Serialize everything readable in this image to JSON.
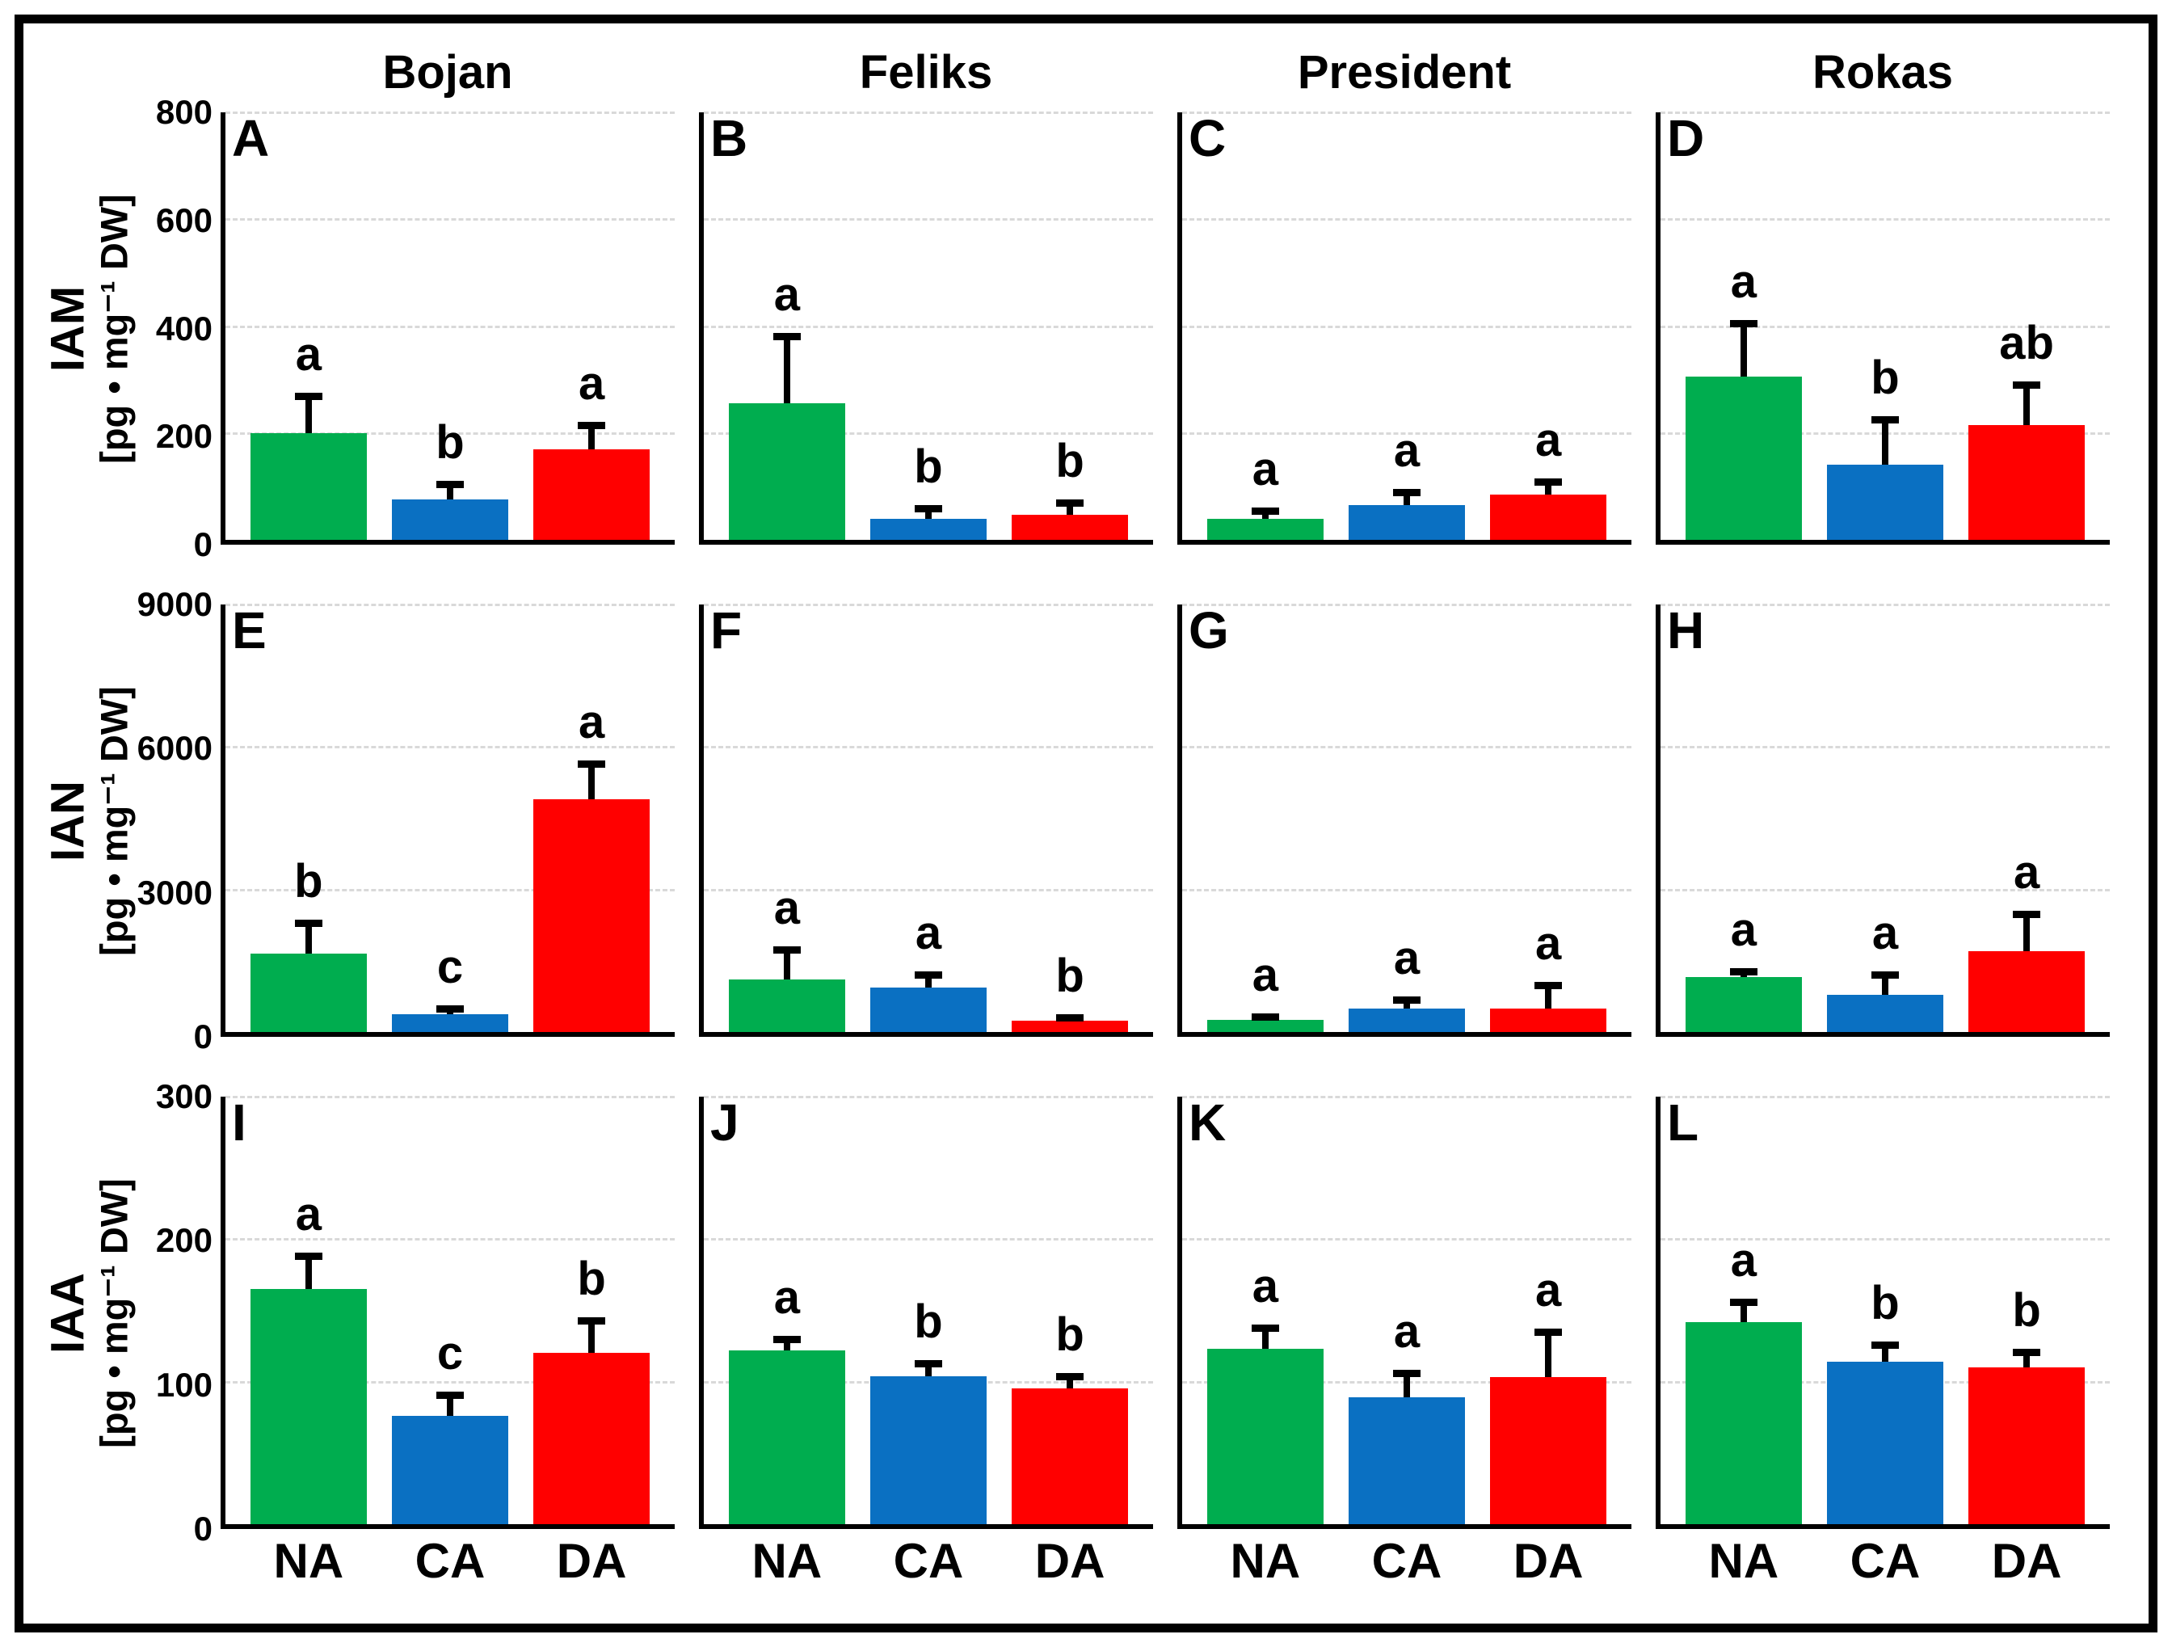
{
  "figure": {
    "columns": [
      "Bojan",
      "Feliks",
      "President",
      "Rokas"
    ],
    "treatments": [
      "NA",
      "CA",
      "DA"
    ],
    "series_colors": {
      "NA": "#00AD4F",
      "CA": "#0A70C2",
      "DA": "#FF0000"
    },
    "axis_color": "#000000",
    "gridline_color": "#d9d9d9",
    "rows": [
      {
        "label": "IAM",
        "unit": "[pg • mg⁻¹ DW]",
        "ymax": 800,
        "yticks": [
          0,
          200,
          400,
          600,
          800
        ]
      },
      {
        "label": "IAN",
        "unit": "[pg • mg⁻¹ DW]",
        "ymax": 9000,
        "yticks": [
          0,
          3000,
          6000,
          9000
        ]
      },
      {
        "label": "IAA",
        "unit": "[pg • mg⁻¹ DW]",
        "ymax": 300,
        "yticks": [
          0,
          100,
          200,
          300
        ]
      }
    ]
  },
  "chart_data": [
    {
      "panel": "A",
      "type": "bar",
      "hormone": "IAM",
      "cultivar": "Bojan",
      "ylim": [
        0,
        800
      ],
      "grid": "dashed-horizontal",
      "legend": "none",
      "categories": [
        "NA",
        "CA",
        "DA"
      ],
      "values": [
        200,
        75,
        170
      ],
      "error_top": [
        275,
        110,
        220
      ],
      "sig_letters": [
        "a",
        "b",
        "a"
      ]
    },
    {
      "panel": "B",
      "type": "bar",
      "hormone": "IAM",
      "cultivar": "Feliks",
      "ylim": [
        0,
        800
      ],
      "grid": "dashed-horizontal",
      "legend": "none",
      "categories": [
        "NA",
        "CA",
        "DA"
      ],
      "values": [
        255,
        40,
        47
      ],
      "error_top": [
        385,
        65,
        75
      ],
      "sig_letters": [
        "a",
        "b",
        "b"
      ]
    },
    {
      "panel": "C",
      "type": "bar",
      "hormone": "IAM",
      "cultivar": "President",
      "ylim": [
        0,
        800
      ],
      "grid": "dashed-horizontal",
      "legend": "none",
      "categories": [
        "NA",
        "CA",
        "DA"
      ],
      "values": [
        40,
        65,
        85
      ],
      "error_top": [
        60,
        95,
        115
      ],
      "sig_letters": [
        "a",
        "a",
        "a"
      ]
    },
    {
      "panel": "D",
      "type": "bar",
      "hormone": "IAM",
      "cultivar": "Rokas",
      "ylim": [
        0,
        800
      ],
      "grid": "dashed-horizontal",
      "legend": "none",
      "categories": [
        "NA",
        "CA",
        "DA"
      ],
      "values": [
        305,
        140,
        215
      ],
      "error_top": [
        410,
        230,
        295
      ],
      "sig_letters": [
        "a",
        "b",
        "ab"
      ]
    },
    {
      "panel": "E",
      "type": "bar",
      "hormone": "IAN",
      "cultivar": "Bojan",
      "ylim": [
        0,
        9000
      ],
      "grid": "dashed-horizontal",
      "legend": "none",
      "categories": [
        "NA",
        "CA",
        "DA"
      ],
      "values": [
        1650,
        380,
        4900
      ],
      "error_top": [
        2350,
        560,
        5700
      ],
      "sig_letters": [
        "b",
        "c",
        "a"
      ]
    },
    {
      "panel": "F",
      "type": "bar",
      "hormone": "IAN",
      "cultivar": "Feliks",
      "ylim": [
        0,
        9000
      ],
      "grid": "dashed-horizontal",
      "legend": "none",
      "categories": [
        "NA",
        "CA",
        "DA"
      ],
      "values": [
        1100,
        940,
        230
      ],
      "error_top": [
        1800,
        1280,
        370
      ],
      "sig_letters": [
        "a",
        "a",
        "b"
      ]
    },
    {
      "panel": "G",
      "type": "bar",
      "hormone": "IAN",
      "cultivar": "President",
      "ylim": [
        0,
        9000
      ],
      "grid": "dashed-horizontal",
      "legend": "none",
      "categories": [
        "NA",
        "CA",
        "DA"
      ],
      "values": [
        250,
        500,
        500
      ],
      "error_top": [
        350,
        750,
        1050
      ],
      "sig_letters": [
        "a",
        "a",
        "a"
      ]
    },
    {
      "panel": "H",
      "type": "bar",
      "hormone": "IAN",
      "cultivar": "Rokas",
      "ylim": [
        0,
        9000
      ],
      "grid": "dashed-horizontal",
      "legend": "none",
      "categories": [
        "NA",
        "CA",
        "DA"
      ],
      "values": [
        1150,
        780,
        1700
      ],
      "error_top": [
        1350,
        1270,
        2550
      ],
      "sig_letters": [
        "a",
        "a",
        "a"
      ]
    },
    {
      "panel": "I",
      "type": "bar",
      "hormone": "IAA",
      "cultivar": "Bojan",
      "ylim": [
        0,
        300
      ],
      "grid": "dashed-horizontal",
      "legend": "none",
      "categories": [
        "NA",
        "CA",
        "DA"
      ],
      "values": [
        165,
        76,
        120
      ],
      "error_top": [
        190,
        93,
        145
      ],
      "sig_letters": [
        "a",
        "c",
        "b"
      ]
    },
    {
      "panel": "J",
      "type": "bar",
      "hormone": "IAA",
      "cultivar": "Feliks",
      "ylim": [
        0,
        300
      ],
      "grid": "dashed-horizontal",
      "legend": "none",
      "categories": [
        "NA",
        "CA",
        "DA"
      ],
      "values": [
        122,
        104,
        95
      ],
      "error_top": [
        132,
        115,
        106
      ],
      "sig_letters": [
        "a",
        "b",
        "b"
      ]
    },
    {
      "panel": "K",
      "type": "bar",
      "hormone": "IAA",
      "cultivar": "President",
      "ylim": [
        0,
        300
      ],
      "grid": "dashed-horizontal",
      "legend": "none",
      "categories": [
        "NA",
        "CA",
        "DA"
      ],
      "values": [
        123,
        89,
        103
      ],
      "error_top": [
        140,
        108,
        137
      ],
      "sig_letters": [
        "a",
        "a",
        "a"
      ]
    },
    {
      "panel": "L",
      "type": "bar",
      "hormone": "IAA",
      "cultivar": "Rokas",
      "ylim": [
        0,
        300
      ],
      "grid": "dashed-horizontal",
      "legend": "none",
      "categories": [
        "NA",
        "CA",
        "DA"
      ],
      "values": [
        142,
        114,
        110
      ],
      "error_top": [
        158,
        128,
        123
      ],
      "sig_letters": [
        "a",
        "b",
        "b"
      ]
    }
  ]
}
